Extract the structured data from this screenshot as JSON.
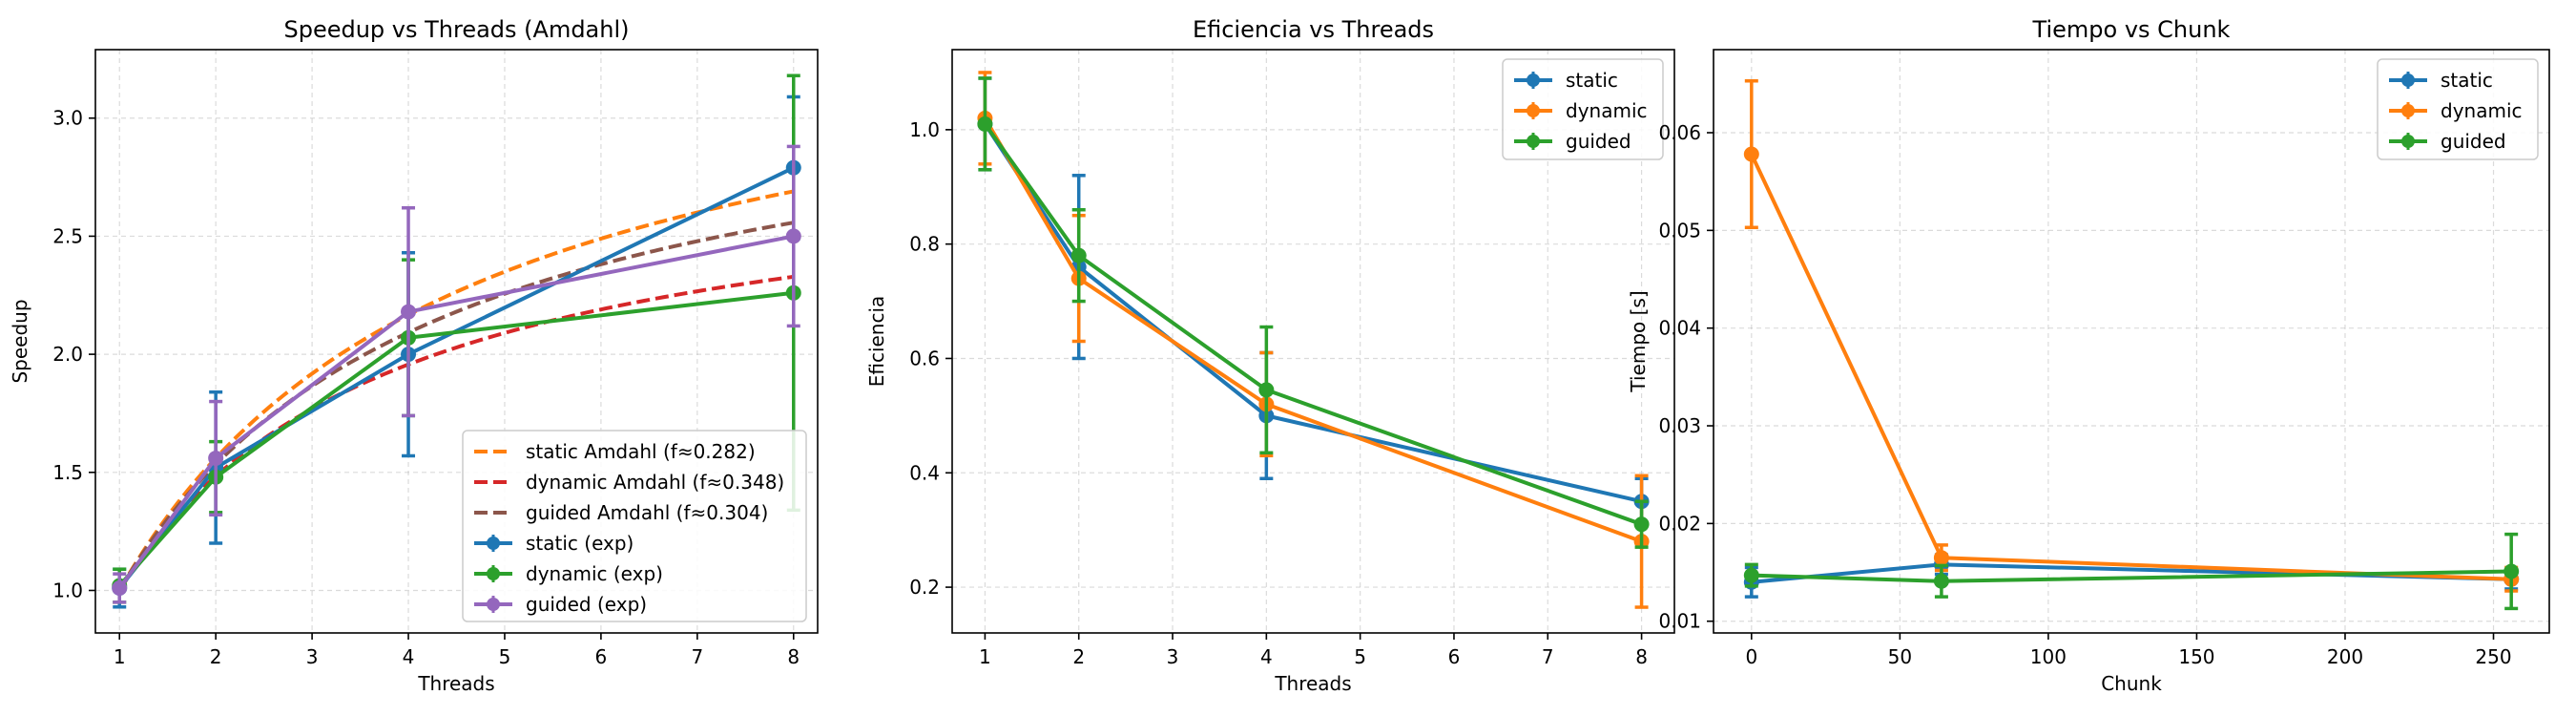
{
  "chart_data": [
    {
      "type": "line",
      "title": "Speedup vs Threads (Amdahl)",
      "xlabel": "Threads",
      "ylabel": "Speedup",
      "xlim": [
        0.75,
        8.25
      ],
      "ylim": [
        0.82,
        3.29
      ],
      "xticks": [
        1,
        2,
        3,
        4,
        5,
        6,
        7,
        8
      ],
      "xtick_labels": [
        "1",
        "2",
        "3",
        "4",
        "5",
        "6",
        "7",
        "8"
      ],
      "yticks": [
        1.0,
        1.5,
        2.0,
        2.5,
        3.0
      ],
      "ytick_labels": [
        "1.0",
        "1.5",
        "2.0",
        "2.5",
        "3.0"
      ],
      "grid": true,
      "legend_position": "lower-right",
      "curves": [
        {
          "name": "static Amdahl (f≈0.282)",
          "color": "#ff7f0e",
          "f": 0.282
        },
        {
          "name": "dynamic Amdahl (f≈0.348)",
          "color": "#d62728",
          "f": 0.348
        },
        {
          "name": "guided Amdahl (f≈0.304)",
          "color": "#8c564b",
          "f": 0.304
        }
      ],
      "series": [
        {
          "name": "static (exp)",
          "color": "#1f77b4",
          "x": [
            1,
            2,
            4,
            8
          ],
          "y": [
            1.01,
            1.52,
            2.0,
            2.79
          ],
          "err": [
            0.08,
            0.32,
            0.43,
            0.3
          ]
        },
        {
          "name": "dynamic (exp)",
          "color": "#2ca02c",
          "x": [
            1,
            2,
            4,
            8
          ],
          "y": [
            1.02,
            1.48,
            2.07,
            2.26
          ],
          "err": [
            0.07,
            0.15,
            0.33,
            0.92
          ]
        },
        {
          "name": "guided (exp)",
          "color": "#9467bd",
          "x": [
            1,
            2,
            4,
            8
          ],
          "y": [
            1.01,
            1.56,
            2.18,
            2.5
          ],
          "err": [
            0.06,
            0.24,
            0.44,
            0.38
          ]
        }
      ]
    },
    {
      "type": "line",
      "title": "Eficiencia vs Threads",
      "xlabel": "Threads",
      "ylabel": "Eficiencia",
      "xlim": [
        0.65,
        8.35
      ],
      "ylim": [
        0.12,
        1.14
      ],
      "xticks": [
        1,
        2,
        3,
        4,
        5,
        6,
        7,
        8
      ],
      "xtick_labels": [
        "1",
        "2",
        "3",
        "4",
        "5",
        "6",
        "7",
        "8"
      ],
      "yticks": [
        0.2,
        0.4,
        0.6,
        0.8,
        1.0
      ],
      "ytick_labels": [
        "0.2",
        "0.4",
        "0.6",
        "0.8",
        "1.0"
      ],
      "grid": true,
      "legend_position": "top-right",
      "series": [
        {
          "name": "static",
          "color": "#1f77b4",
          "x": [
            1,
            2,
            4,
            8
          ],
          "y": [
            1.01,
            0.76,
            0.5,
            0.35
          ],
          "err": [
            0.08,
            0.16,
            0.11,
            0.04
          ]
        },
        {
          "name": "dynamic",
          "color": "#ff7f0e",
          "x": [
            1,
            2,
            4,
            8
          ],
          "y": [
            1.02,
            0.74,
            0.52,
            0.28
          ],
          "err": [
            0.08,
            0.11,
            0.09,
            0.115
          ]
        },
        {
          "name": "guided",
          "color": "#2ca02c",
          "x": [
            1,
            2,
            4,
            8
          ],
          "y": [
            1.01,
            0.78,
            0.545,
            0.31
          ],
          "err": [
            0.08,
            0.08,
            0.11,
            0.04
          ]
        }
      ]
    },
    {
      "type": "line",
      "title": "Tiempo vs Chunk",
      "xlabel": "Chunk",
      "ylabel": "Tiempo [s]",
      "xlim": [
        -12.8,
        268.8
      ],
      "ylim": [
        0.0088,
        0.0685
      ],
      "xticks": [
        0,
        50,
        100,
        150,
        200,
        250
      ],
      "xtick_labels": [
        "0",
        "50",
        "100",
        "150",
        "200",
        "250"
      ],
      "yticks": [
        0.01,
        0.02,
        0.03,
        0.04,
        0.05,
        0.06
      ],
      "ytick_labels": [
        "0.01",
        "0.02",
        "0.03",
        "0.04",
        "0.05",
        "0.06"
      ],
      "grid": true,
      "legend_position": "top-right",
      "series": [
        {
          "name": "static",
          "color": "#1f77b4",
          "x": [
            0,
            64,
            256
          ],
          "y": [
            0.014,
            0.0158,
            0.0143
          ],
          "err": [
            0.0015,
            0.001,
            0.001
          ]
        },
        {
          "name": "dynamic",
          "color": "#ff7f0e",
          "x": [
            0,
            64,
            256
          ],
          "y": [
            0.0578,
            0.0165,
            0.0143
          ],
          "err": [
            0.0075,
            0.0013,
            0.0012
          ]
        },
        {
          "name": "guided",
          "color": "#2ca02c",
          "x": [
            0,
            64,
            256
          ],
          "y": [
            0.0147,
            0.0141,
            0.0151
          ],
          "err": [
            0.0011,
            0.0016,
            0.0038
          ]
        }
      ]
    }
  ]
}
